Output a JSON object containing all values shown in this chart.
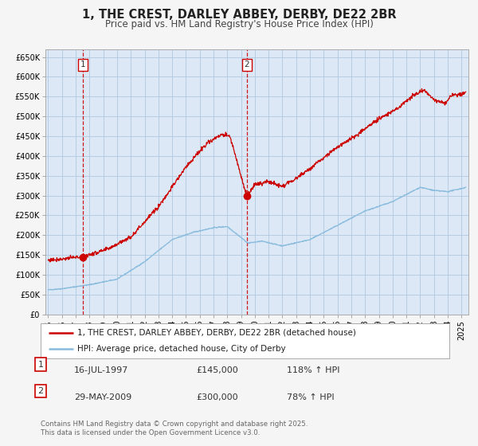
{
  "title": "1, THE CREST, DARLEY ABBEY, DERBY, DE22 2BR",
  "subtitle": "Price paid vs. HM Land Registry's House Price Index (HPI)",
  "background_color": "#f5f5f5",
  "plot_bg_color": "#dce8f5",
  "grid_color": "#b0c8e0",
  "ylim": [
    0,
    670000
  ],
  "yticks": [
    0,
    50000,
    100000,
    150000,
    200000,
    250000,
    300000,
    350000,
    400000,
    450000,
    500000,
    550000,
    600000,
    650000
  ],
  "ytick_labels": [
    "£0",
    "£50K",
    "£100K",
    "£150K",
    "£200K",
    "£250K",
    "£300K",
    "£350K",
    "£400K",
    "£450K",
    "£500K",
    "£550K",
    "£600K",
    "£650K"
  ],
  "xlim_start": 1994.8,
  "xlim_end": 2025.5,
  "xtick_years": [
    1995,
    1996,
    1997,
    1998,
    1999,
    2000,
    2001,
    2002,
    2003,
    2004,
    2005,
    2006,
    2007,
    2008,
    2009,
    2010,
    2011,
    2012,
    2013,
    2014,
    2015,
    2016,
    2017,
    2018,
    2019,
    2020,
    2021,
    2022,
    2023,
    2024,
    2025
  ],
  "red_line_color": "#cc0000",
  "blue_line_color": "#88bbdd",
  "sale1_x": 1997.54,
  "sale1_y": 145000,
  "sale2_x": 2009.41,
  "sale2_y": 300000,
  "legend_label_red": "1, THE CREST, DARLEY ABBEY, DERBY, DE22 2BR (detached house)",
  "legend_label_blue": "HPI: Average price, detached house, City of Derby",
  "annotation1_date": "16-JUL-1997",
  "annotation1_price": "£145,000",
  "annotation1_hpi": "118% ↑ HPI",
  "annotation2_date": "29-MAY-2009",
  "annotation2_price": "£300,000",
  "annotation2_hpi": "78% ↑ HPI",
  "footer": "Contains HM Land Registry data © Crown copyright and database right 2025.\nThis data is licensed under the Open Government Licence v3.0."
}
